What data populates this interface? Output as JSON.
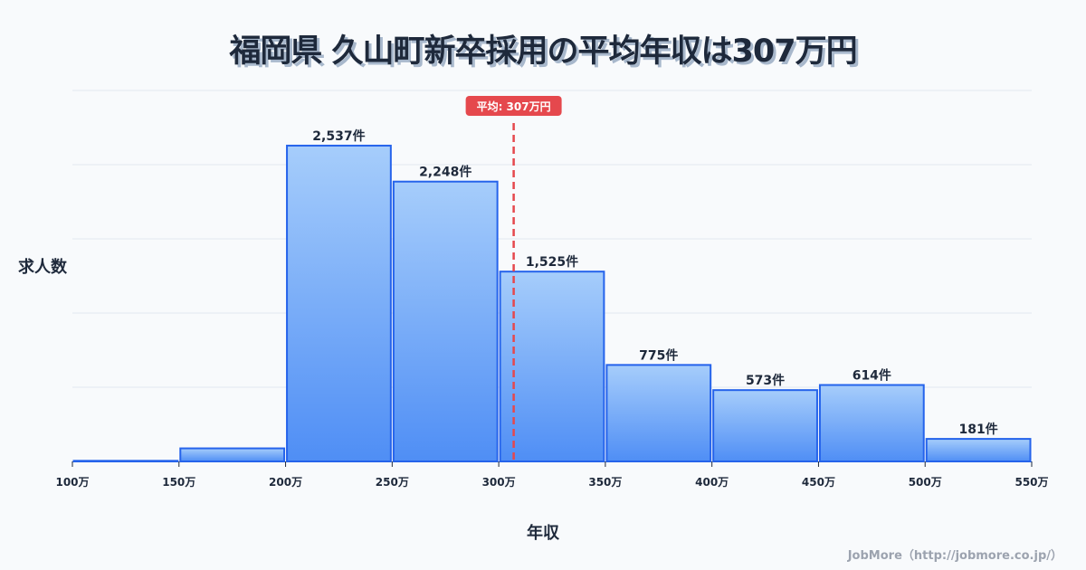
{
  "title": "福岡県 久山町新卒採用の平均年収は307万円",
  "credit": "JobMore（http://jobmore.co.jp/）",
  "colors": {
    "bar_fill_top": "#a6cdfb",
    "bar_fill_bottom": "#4f8ef5",
    "bar_stroke": "#2563eb",
    "mean_line": "#e5484d",
    "grid": "#e2e8f0",
    "text": "#1e293b"
  },
  "chart_data": {
    "type": "bar",
    "title": "福岡県 久山町新卒採用の平均年収は307万円",
    "xlabel": "年収",
    "ylabel": "求人数",
    "categories": [
      "100万-150万",
      "150万-200万",
      "200万-250万",
      "250万-300万",
      "300万-350万",
      "350万-400万",
      "400万-450万",
      "450万-500万",
      "500万-550万"
    ],
    "bin_edges": [
      100,
      150,
      200,
      250,
      300,
      350,
      400,
      450,
      500,
      550
    ],
    "tick_labels": [
      "100万",
      "150万",
      "200万",
      "250万",
      "300万",
      "350万",
      "400万",
      "450万",
      "500万",
      "550万"
    ],
    "values": [
      5,
      105,
      2537,
      2248,
      1525,
      775,
      573,
      614,
      181
    ],
    "bar_labels": [
      "",
      "",
      "2,537件",
      "2,248件",
      "1,525件",
      "775件",
      "573件",
      "614件",
      "181件"
    ],
    "ylim": [
      0,
      2980
    ],
    "grid": true,
    "mean": {
      "value": 307,
      "label": "平均: 307万円"
    }
  }
}
